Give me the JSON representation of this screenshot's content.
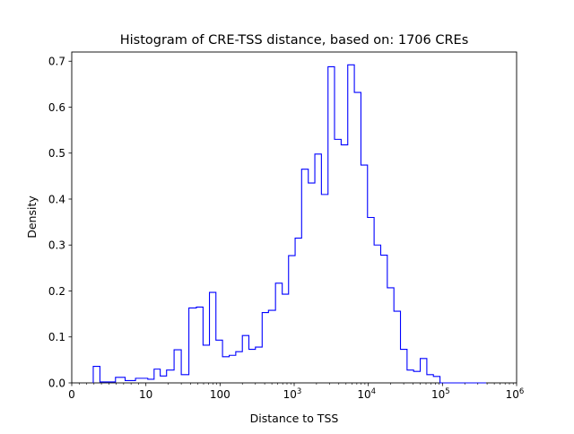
{
  "chart_data": {
    "type": "histogram",
    "title": "Histogram of CRE-TSS distance, based on: 1706 CREs",
    "xlabel": "Distance to TSS",
    "ylabel": "Density",
    "x_scale": "symlog",
    "xlim": [
      0,
      1000000
    ],
    "ylim": [
      0,
      0.72
    ],
    "grid": false,
    "line_color": "#0000ff",
    "x_ticks": [
      {
        "value": 0,
        "label": "0"
      },
      {
        "value": 10,
        "label": "10"
      },
      {
        "value": 100,
        "label": "100"
      },
      {
        "value": 1000,
        "label": "10",
        "exp": "3"
      },
      {
        "value": 10000,
        "label": "10",
        "exp": "4"
      },
      {
        "value": 100000,
        "label": "10",
        "exp": "5"
      },
      {
        "value": 1000000,
        "label": "10",
        "exp": "6"
      }
    ],
    "y_ticks": [
      {
        "value": 0.0,
        "label": "0.0"
      },
      {
        "value": 0.1,
        "label": "0.1"
      },
      {
        "value": 0.2,
        "label": "0.2"
      },
      {
        "value": 0.3,
        "label": "0.3"
      },
      {
        "value": 0.4,
        "label": "0.4"
      },
      {
        "value": 0.5,
        "label": "0.5"
      },
      {
        "value": 0.6,
        "label": "0.6"
      },
      {
        "value": 0.7,
        "label": "0.7"
      }
    ],
    "bin_edges": [
      2.9,
      3.8,
      4.8,
      5.9,
      7.2,
      8.6,
      10.6,
      12.9,
      15.6,
      19.0,
      24.0,
      30.0,
      38.0,
      48.0,
      59.0,
      72.0,
      88.0,
      108.0,
      133.0,
      163.0,
      200.0,
      245.0,
      300.0,
      370.0,
      450.0,
      560.0,
      690.0,
      840.0,
      1030.0,
      1260.0,
      1550.0,
      1900.0,
      2330.0,
      2860.0,
      3500.0,
      4300.0,
      5280.0,
      6480.0,
      7950.0,
      9750.0,
      11970.0,
      14700.0,
      18030.0,
      22130.0,
      27150.0,
      33310.0,
      40870.0,
      50150.0,
      61530.0,
      75500.0,
      92640.0,
      113700.0,
      139500.0,
      171100.0,
      210000.0,
      257700.0,
      316200.0,
      388000.0
    ],
    "densities": [
      0.036,
      0.002,
      0.002,
      0.012,
      0.005,
      0.01,
      0.008,
      0.03,
      0.015,
      0.028,
      0.072,
      0.018,
      0.163,
      0.165,
      0.082,
      0.197,
      0.093,
      0.057,
      0.06,
      0.068,
      0.103,
      0.073,
      0.078,
      0.153,
      0.158,
      0.217,
      0.193,
      0.277,
      0.315,
      0.465,
      0.435,
      0.498,
      0.41,
      0.688,
      0.53,
      0.518,
      0.692,
      0.632,
      0.474,
      0.36,
      0.3,
      0.278,
      0.207,
      0.156,
      0.073,
      0.028,
      0.025,
      0.053,
      0.018,
      0.014,
      0.0,
      0.0,
      0.0,
      0.0,
      0.0,
      0.0,
      0.0
    ]
  }
}
